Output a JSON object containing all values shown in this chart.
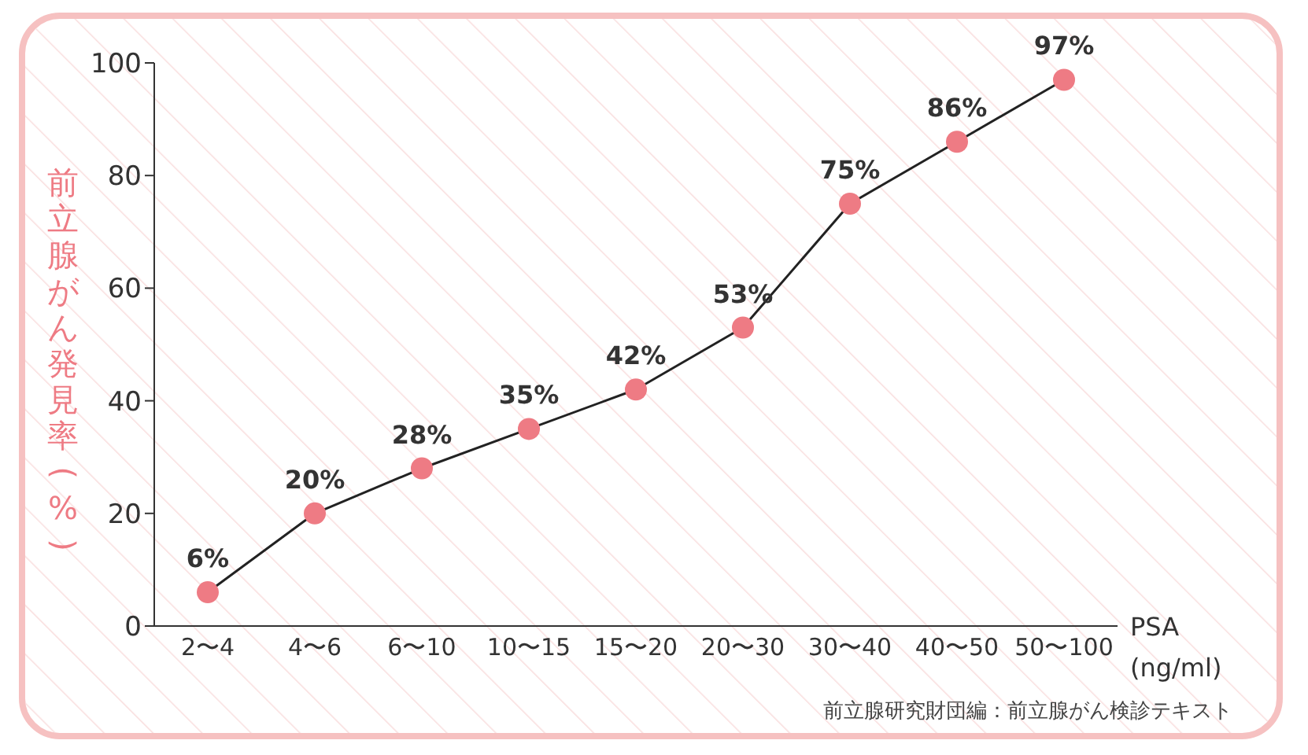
{
  "chart_data": {
    "type": "line",
    "xlabel": "PSA (ng/ml)",
    "ylabel": "前立腺がん発見率(%)",
    "categories": [
      "2〜4",
      "4〜6",
      "6〜10",
      "10〜15",
      "15〜20",
      "20〜30",
      "30〜40",
      "40〜50",
      "50〜100"
    ],
    "series": [
      {
        "color": "#ee7b84",
        "values": [
          6,
          20,
          28,
          35,
          42,
          53,
          75,
          86,
          97
        ],
        "value_labels": [
          "6%",
          "20%",
          "28%",
          "35%",
          "42%",
          "53%",
          "75%",
          "86%",
          "97%"
        ]
      }
    ],
    "ylim": [
      0,
      100
    ],
    "yticks": [
      0,
      20,
      40,
      60,
      80,
      100
    ],
    "grid": false,
    "legend": false,
    "marker": "circle",
    "line_style": "solid",
    "annotations": [
      "前立腺研究財団編：前立腺がん検診テキスト"
    ]
  }
}
